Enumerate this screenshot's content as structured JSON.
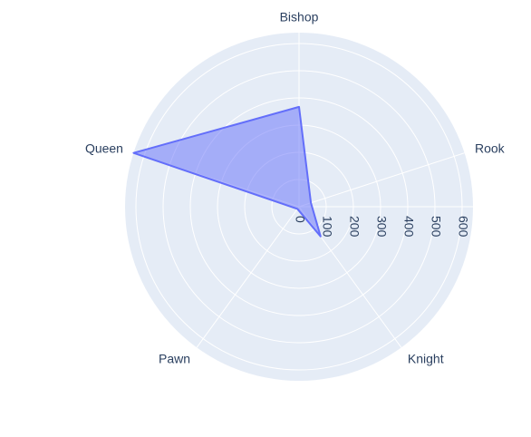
{
  "chart_data": {
    "type": "radar",
    "categories": [
      "Bishop",
      "Queen",
      "Pawn",
      "Knight",
      "Rook"
    ],
    "values": [
      367,
      640,
      10,
      135,
      46
    ],
    "color": "#636efa",
    "rlim": [
      0,
      640
    ],
    "rticks": [
      0,
      100,
      200,
      300,
      400,
      500,
      600
    ],
    "rotation": 90,
    "direction": "counterclockwise",
    "grid": true
  }
}
